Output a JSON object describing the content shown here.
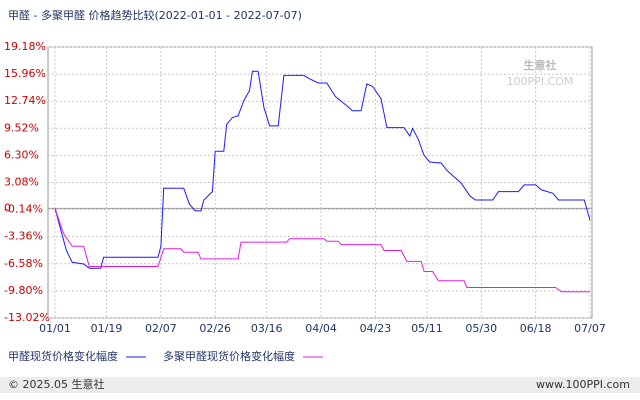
{
  "chart_data": {
    "type": "line",
    "title": "甲醛 - 多聚甲醛 价格趋势比较(2022-01-01 - 2022-07-07)",
    "watermark": {
      "name": "生意社",
      "site": "100PPI.COM"
    },
    "footer_left": "© 2025.05 生意社",
    "footer_right": "www.100PPI.com",
    "xlim": [
      "01/01",
      "07/07"
    ],
    "xticks": [
      "01/01",
      "01/19",
      "02/07",
      "02/26",
      "03/16",
      "04/04",
      "04/23",
      "05/11",
      "05/30",
      "06/18",
      "07/07"
    ],
    "ylim": [
      -13.02,
      19.18
    ],
    "yticks": [
      {
        "value": 19.18,
        "label": "19.18%"
      },
      {
        "value": 15.96,
        "label": "15.96%"
      },
      {
        "value": 12.74,
        "label": "12.74%"
      },
      {
        "value": 9.52,
        "label": "9.52%"
      },
      {
        "value": 6.3,
        "label": "6.30%"
      },
      {
        "value": 3.08,
        "label": "3.08%"
      },
      {
        "value": -0.14,
        "label": "-0.14%"
      },
      {
        "value": -3.36,
        "label": "-3.36%"
      },
      {
        "value": -6.58,
        "label": "-6.58%"
      },
      {
        "value": -9.8,
        "label": "-9.80%"
      },
      {
        "value": -13.02,
        "label": "-13.02%"
      }
    ],
    "zero_line": 0,
    "grid": true,
    "series": [
      {
        "name": "甲醛现货价格变化幅度",
        "color": "#1a1aff",
        "x": [
          "01/01",
          "01/03",
          "01/05",
          "01/07",
          "01/11",
          "01/13",
          "01/17",
          "01/18",
          "02/06",
          "02/07",
          "02/08",
          "02/15",
          "02/17",
          "02/19",
          "02/21",
          "02/22",
          "02/25",
          "02/26",
          "03/01",
          "03/02",
          "03/04",
          "03/06",
          "03/08",
          "03/10",
          "03/11",
          "03/13",
          "03/15",
          "03/17",
          "03/20",
          "03/22",
          "03/29",
          "03/31",
          "04/03",
          "04/06",
          "04/09",
          "04/13",
          "04/15",
          "04/18",
          "04/20",
          "04/22",
          "04/25",
          "04/27",
          "05/03",
          "05/05",
          "05/06",
          "05/08",
          "05/10",
          "05/12",
          "05/16",
          "05/18",
          "05/20",
          "05/23",
          "05/26",
          "05/28",
          "06/03",
          "06/05",
          "06/12",
          "06/14",
          "06/18",
          "06/20",
          "06/24",
          "06/26",
          "07/05",
          "07/07"
        ],
        "values": [
          0,
          -2.5,
          -5,
          -6.4,
          -6.6,
          -7.1,
          -7.1,
          -5.8,
          -5.8,
          -4.5,
          2.4,
          2.4,
          0.5,
          -0.3,
          -0.3,
          1.0,
          2.0,
          6.8,
          6.8,
          10.0,
          10.8,
          11.0,
          12.8,
          14.0,
          16.3,
          16.3,
          12.0,
          9.8,
          9.8,
          15.8,
          15.8,
          15.4,
          14.9,
          14.9,
          13.3,
          12.2,
          11.6,
          11.6,
          14.8,
          14.5,
          13.0,
          9.6,
          9.6,
          8.6,
          9.5,
          8.2,
          6.3,
          5.5,
          5.4,
          4.5,
          3.9,
          3.0,
          1.5,
          1.0,
          1.0,
          2.0,
          2.0,
          2.8,
          2.8,
          2.2,
          1.8,
          1.0,
          1.0,
          -1.4
        ]
      },
      {
        "name": "多聚甲醛现货价格变化幅度",
        "color": "#e020e0",
        "x": [
          "01/01",
          "01/04",
          "01/07",
          "01/11",
          "01/13",
          "02/06",
          "02/08",
          "02/14",
          "02/15",
          "02/20",
          "02/21",
          "03/06",
          "03/07",
          "03/23",
          "03/24",
          "04/05",
          "04/06",
          "04/10",
          "04/11",
          "04/25",
          "04/26",
          "05/02",
          "05/04",
          "05/09",
          "05/10",
          "05/13",
          "05/15",
          "05/24",
          "05/25",
          "06/25",
          "06/27",
          "07/07"
        ],
        "values": [
          0,
          -3,
          -4.5,
          -4.5,
          -6.9,
          -6.9,
          -4.8,
          -4.8,
          -5.2,
          -5.2,
          -6.0,
          -6.0,
          -4.0,
          -4.0,
          -3.6,
          -3.6,
          -3.9,
          -3.9,
          -4.3,
          -4.3,
          -5.0,
          -5.0,
          -6.3,
          -6.3,
          -7.5,
          -7.5,
          -8.6,
          -8.6,
          -9.4,
          -9.4,
          -9.9,
          -9.9
        ]
      }
    ]
  }
}
